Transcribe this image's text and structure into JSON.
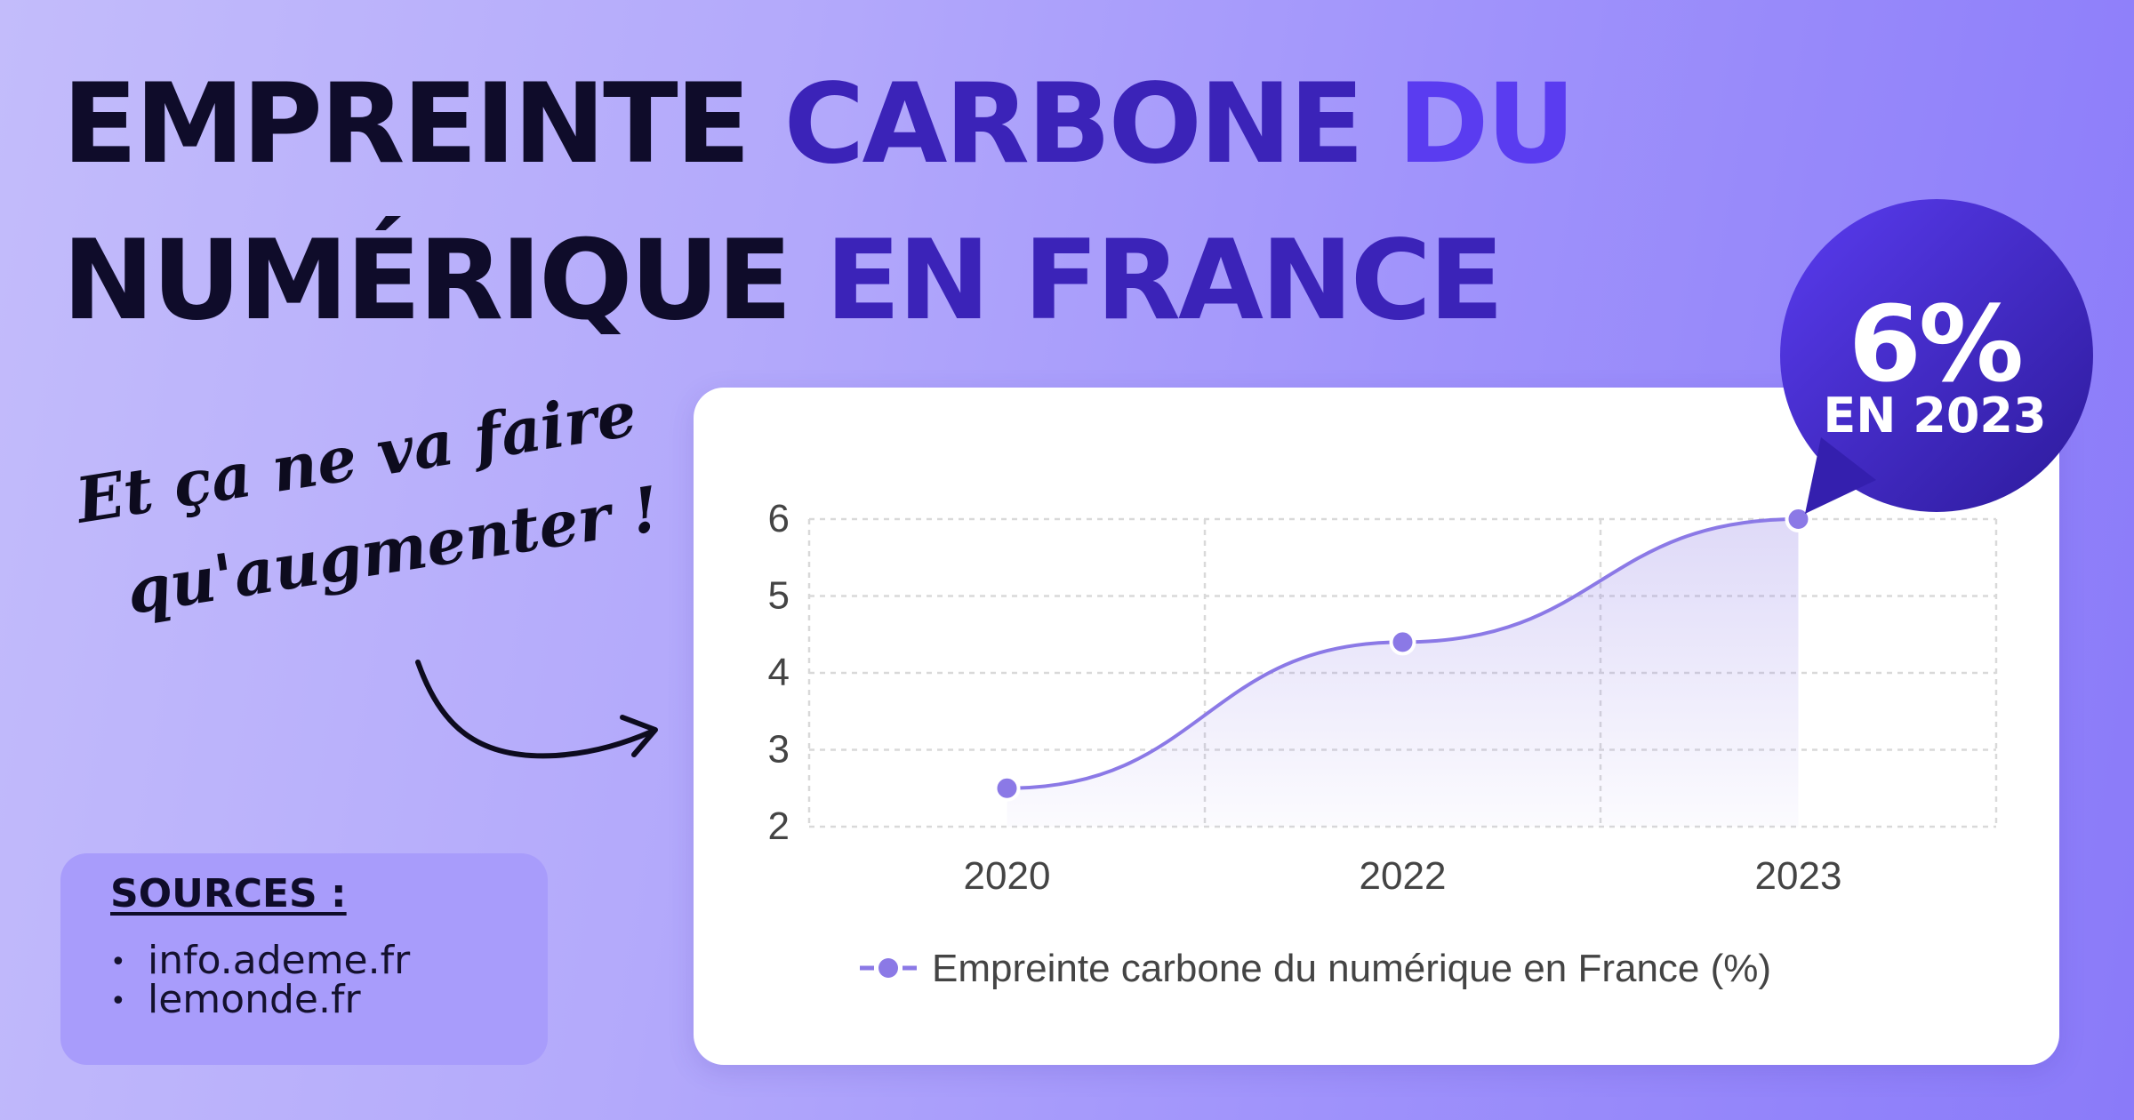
{
  "title": {
    "line1_a": "EMPREINTE ",
    "line1_b": "CARBONE ",
    "line1_c": "DU",
    "line2_a": "NUMÉRIQUE ",
    "line2_b": "EN ",
    "line2_c": "FRANCE"
  },
  "tagline": {
    "line1": "Et ça ne va faire",
    "line2": "qu'augmenter !"
  },
  "callout": {
    "value": "6%",
    "subtitle": "EN 2023"
  },
  "sources": {
    "title": "SOURCES :",
    "items": [
      "info.ademe.fr",
      "lemonde.fr"
    ]
  },
  "colors": {
    "line": "#8b79e6",
    "point": "#8b79e6",
    "bubble": "#3a25b8",
    "accent": "#5a3cf0"
  },
  "chart_data": {
    "type": "line",
    "categories": [
      "2020",
      "2022",
      "2023"
    ],
    "series": [
      {
        "name": "Empreinte carbone du numérique en France (%)",
        "values": [
          2.5,
          4.4,
          6
        ]
      }
    ],
    "yticks": [
      2,
      3,
      4,
      5,
      6
    ],
    "ylim": [
      2,
      6
    ],
    "grid": true,
    "legend": "bottom"
  }
}
